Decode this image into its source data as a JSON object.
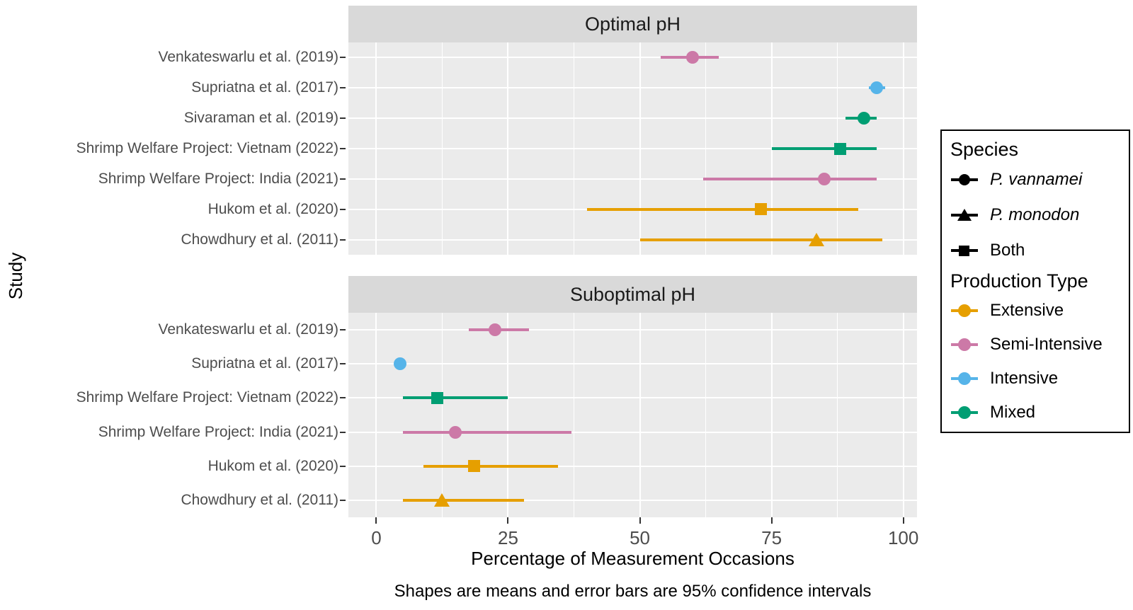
{
  "y_axis_title": "Study",
  "x_axis_title": "Percentage of Measurement Occasions",
  "caption": "Shapes are means and error bars are 95% confidence intervals",
  "chart_data": {
    "type": "scatter",
    "subtype": "forest-plot-dot-with-95ci",
    "xlabel": "Percentage of Measurement Occasions",
    "ylabel": "Study",
    "caption": "Shapes are means and error bars are 95% confidence intervals",
    "x_ticks": [
      0,
      25,
      50,
      75,
      100
    ],
    "x_minor_gridlines": [
      12.5,
      37.5,
      62.5,
      87.5
    ],
    "xlim": [
      -5.3,
      102.6
    ],
    "grid": "white-on-grey",
    "legend_position": "right",
    "colors": {
      "Extensive": "#E69F00",
      "Semi-Intensive": "#CC79A7",
      "Intensive": "#56B4E9",
      "Mixed": "#009E73"
    },
    "legend": {
      "species_title": "Species",
      "species": [
        {
          "label": "P. vannamei",
          "shape": "circle",
          "italic": true
        },
        {
          "label": "P. monodon",
          "shape": "triangle",
          "italic": true
        },
        {
          "label": "Both",
          "shape": "square",
          "italic": false
        }
      ],
      "production_title": "Production Type",
      "production": [
        {
          "label": "Extensive",
          "color": "#E69F00"
        },
        {
          "label": "Semi-Intensive",
          "color": "#CC79A7"
        },
        {
          "label": "Intensive",
          "color": "#56B4E9"
        },
        {
          "label": "Mixed",
          "color": "#009E73"
        }
      ]
    },
    "panels": [
      {
        "title": "Optimal pH",
        "rows": [
          {
            "study": "Venkateswarlu et al. (2019)",
            "mean": 60,
            "ci": [
              54,
              65
            ],
            "shape": "circle",
            "species": "P. vannamei",
            "production": "Semi-Intensive",
            "color": "#CC79A7"
          },
          {
            "study": "Supriatna et al. (2017)",
            "mean": 95,
            "ci": [
              93.5,
              96.5
            ],
            "shape": "circle",
            "species": "P. vannamei",
            "production": "Intensive",
            "color": "#56B4E9"
          },
          {
            "study": "Sivaraman et al. (2019)",
            "mean": 92.5,
            "ci": [
              89,
              95
            ],
            "shape": "circle",
            "species": "P. vannamei",
            "production": "Mixed",
            "color": "#009E73"
          },
          {
            "study": "Shrimp Welfare Project: Vietnam (2022)",
            "mean": 88,
            "ci": [
              75,
              95
            ],
            "shape": "square",
            "species": "Both",
            "production": "Mixed",
            "color": "#009E73"
          },
          {
            "study": "Shrimp Welfare Project: India (2021)",
            "mean": 85,
            "ci": [
              62,
              95
            ],
            "shape": "circle",
            "species": "P. vannamei",
            "production": "Semi-Intensive",
            "color": "#CC79A7"
          },
          {
            "study": "Hukom et al. (2020)",
            "mean": 73,
            "ci": [
              40,
              91.5
            ],
            "shape": "square",
            "species": "Both",
            "production": "Extensive",
            "color": "#E69F00"
          },
          {
            "study": "Chowdhury et al. (2011)",
            "mean": 83.5,
            "ci": [
              50,
              96
            ],
            "shape": "triangle",
            "species": "P. monodon",
            "production": "Extensive",
            "color": "#E69F00"
          }
        ]
      },
      {
        "title": "Suboptimal pH",
        "rows": [
          {
            "study": "Venkateswarlu et al. (2019)",
            "mean": 22.5,
            "ci": [
              17.5,
              29
            ],
            "shape": "circle",
            "species": "P. vannamei",
            "production": "Semi-Intensive",
            "color": "#CC79A7"
          },
          {
            "study": "Supriatna et al. (2017)",
            "mean": 4.5,
            "ci": [
              3.5,
              5.5
            ],
            "shape": "circle",
            "species": "P. vannamei",
            "production": "Intensive",
            "color": "#56B4E9"
          },
          {
            "study": "Shrimp Welfare Project: Vietnam (2022)",
            "mean": 11.5,
            "ci": [
              5,
              25
            ],
            "shape": "square",
            "species": "Both",
            "production": "Mixed",
            "color": "#009E73"
          },
          {
            "study": "Shrimp Welfare Project: India (2021)",
            "mean": 15,
            "ci": [
              5,
              37
            ],
            "shape": "circle",
            "species": "P. vannamei",
            "production": "Semi-Intensive",
            "color": "#CC79A7"
          },
          {
            "study": "Hukom et al. (2020)",
            "mean": 18.5,
            "ci": [
              9,
              34.5
            ],
            "shape": "square",
            "species": "Both",
            "production": "Extensive",
            "color": "#E69F00"
          },
          {
            "study": "Chowdhury et al. (2011)",
            "mean": 12.5,
            "ci": [
              5,
              28
            ],
            "shape": "triangle",
            "species": "P. monodon",
            "production": "Extensive",
            "color": "#E69F00"
          }
        ]
      }
    ]
  }
}
